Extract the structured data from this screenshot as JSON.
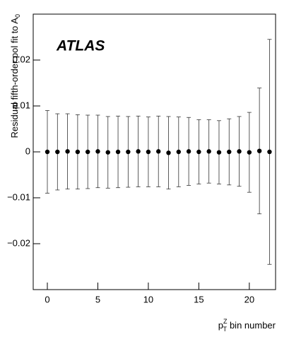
{
  "chart_data": {
    "type": "errorbar",
    "annotation": "ATLAS",
    "x_label": {
      "base": "p",
      "sub": "T",
      "sup": "Z",
      "text": "bin number"
    },
    "y_label": {
      "text": "Residual fifth-order pol fit to A",
      "sub": "0"
    },
    "x": [
      0,
      1,
      2,
      3,
      4,
      5,
      6,
      7,
      8,
      9,
      10,
      11,
      12,
      13,
      14,
      15,
      16,
      17,
      18,
      19,
      20,
      21,
      22
    ],
    "values": [
      0,
      0,
      0.0001,
      0,
      0,
      0.0001,
      -0.0001,
      0,
      0,
      0.0001,
      0,
      0.0001,
      -0.0002,
      0,
      0.0001,
      0,
      0.0001,
      -0.0001,
      0,
      0.0001,
      -0.0001,
      0.0002,
      0
    ],
    "errors": [
      0.009,
      0.0083,
      0.0082,
      0.0081,
      0.008,
      0.0079,
      0.0078,
      0.0078,
      0.0077,
      0.0077,
      0.0076,
      0.0077,
      0.0079,
      0.0076,
      0.0074,
      0.007,
      0.0069,
      0.0069,
      0.0072,
      0.0076,
      0.0087,
      0.0137,
      0.0245
    ],
    "color": "#000000",
    "xlim": [
      -1.4,
      22.6
    ],
    "xticks": [
      0,
      5,
      10,
      15,
      20
    ],
    "ylim": [
      -0.03,
      0.03
    ],
    "yticks": [
      {
        "value": -0.02,
        "label": "−0.02"
      },
      {
        "value": -0.01,
        "label": "−0.01"
      },
      0,
      0.01,
      0.02
    ]
  }
}
